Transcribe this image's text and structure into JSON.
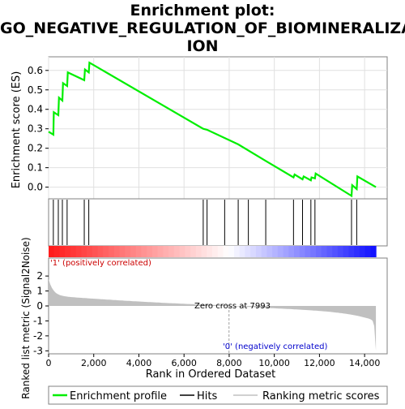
{
  "chart_data": {
    "type": "line",
    "title_lines": [
      "Enrichment plot:",
      "GO_NEGATIVE_REGULATION_OF_BIOMINERALIZAT",
      "ION"
    ],
    "es_panel": {
      "ylabel": "Enrichment score (ES)",
      "ylim": [
        -0.06,
        0.67
      ],
      "yticks": [
        "0.0",
        "0.1",
        "0.2",
        "0.3",
        "0.4",
        "0.5",
        "0.6"
      ],
      "ytick_values": [
        0,
        0.1,
        0.2,
        0.3,
        0.4,
        0.5,
        0.6
      ],
      "grid": true,
      "line_color": "#00ee00",
      "points": [
        [
          0,
          0.285
        ],
        [
          210,
          0.27
        ],
        [
          230,
          0.385
        ],
        [
          430,
          0.37
        ],
        [
          460,
          0.46
        ],
        [
          610,
          0.445
        ],
        [
          640,
          0.535
        ],
        [
          820,
          0.52
        ],
        [
          850,
          0.59
        ],
        [
          1580,
          0.55
        ],
        [
          1610,
          0.605
        ],
        [
          1780,
          0.59
        ],
        [
          1810,
          0.64
        ],
        [
          6850,
          0.3
        ],
        [
          7020,
          0.295
        ],
        [
          8400,
          0.22
        ],
        [
          9620,
          0.135
        ],
        [
          10850,
          0.05
        ],
        [
          10900,
          0.065
        ],
        [
          11250,
          0.04
        ],
        [
          11300,
          0.055
        ],
        [
          11620,
          0.035
        ],
        [
          11650,
          0.05
        ],
        [
          11800,
          0.045
        ],
        [
          11830,
          0.07
        ],
        [
          13420,
          -0.045
        ],
        [
          13450,
          0.01
        ],
        [
          13650,
          -0.01
        ],
        [
          13680,
          0.055
        ],
        [
          14500,
          0.0
        ]
      ]
    },
    "hits": [
      210,
      430,
      610,
      820,
      1580,
      1780,
      6850,
      7020,
      7800,
      8400,
      8850,
      9620,
      10850,
      11250,
      11620,
      11800,
      13420,
      13650
    ],
    "metric_panel": {
      "ylabel": "Ranked list metric (Signal2Noise)",
      "ylim": [
        -3.2,
        3.2
      ],
      "yticks": [
        "-3",
        "-2",
        "-1",
        "0",
        "1",
        "2"
      ],
      "ytick_values": [
        -3,
        -2,
        -1,
        0,
        1,
        2
      ],
      "fill_color": "#c0c0c0",
      "zero_cross_label": "Zero cross at 7993",
      "zero_cross": 7993,
      "positive_label": "'1' (positively correlated)",
      "negative_label": "'0' (negatively correlated)",
      "positive_color": "#cc0000",
      "negative_color": "#0000cc"
    },
    "xlabel": "Rank in Ordered Dataset",
    "xlim": [
      0,
      15000
    ],
    "xticks": [
      "0",
      "2,000",
      "4,000",
      "6,000",
      "8,000",
      "10,000",
      "12,000",
      "14,000"
    ],
    "xtick_values": [
      0,
      2000,
      4000,
      6000,
      8000,
      10000,
      12000,
      14000
    ],
    "n_genes": 14500,
    "legend": {
      "placement": "bottom",
      "entries": [
        {
          "label": "Enrichment profile",
          "color": "#00ee00"
        },
        {
          "label": "Hits",
          "color": "#000000"
        },
        {
          "label": "Ranking metric scores",
          "color": "#c0c0c0"
        }
      ]
    }
  }
}
